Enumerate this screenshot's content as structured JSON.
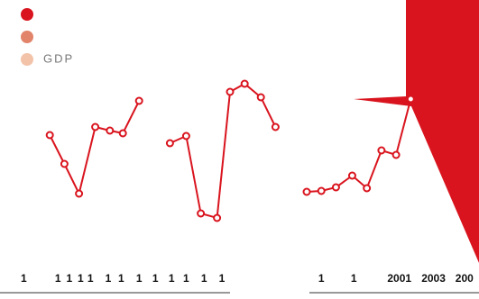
{
  "legend": [
    {
      "color": "#d9141e"
    },
    {
      "color": "#e2846a"
    },
    {
      "color": "#f3c3a9",
      "name": "GDP"
    }
  ],
  "chart_data": [
    {
      "type": "line",
      "color": "#d9141e",
      "xlim": [
        0,
        16
      ],
      "ylim": [
        0,
        130
      ],
      "x": [
        1.4,
        2.3,
        3.2,
        4.2,
        5.1,
        5.9,
        6.9,
        null,
        8.8,
        9.8,
        10.7,
        11.7,
        12.5,
        13.4,
        14.4,
        15.3
      ],
      "values": [
        55,
        39,
        22.5,
        59.5,
        57.5,
        56,
        74,
        null,
        50.5,
        54.5,
        11.5,
        9,
        79,
        83.5,
        76,
        59.5
      ],
      "xticks": [
        {
          "value": -0.2,
          "label": "1"
        },
        {
          "value": 1.9,
          "label": "1"
        },
        {
          "value": 2.6,
          "label": "1"
        },
        {
          "value": 3.3,
          "label": "1"
        },
        {
          "value": 3.9,
          "label": "1"
        },
        {
          "value": 5,
          "label": "1"
        },
        {
          "value": 5.8,
          "label": "1"
        },
        {
          "value": 6.9,
          "label": "1"
        },
        {
          "value": 7.9,
          "label": "1"
        },
        {
          "value": 8.9,
          "label": "1"
        },
        {
          "value": 9.8,
          "label": "1"
        },
        {
          "value": 10.9,
          "label": "1"
        },
        {
          "value": 12,
          "label": "1"
        }
      ]
    },
    {
      "type": "line",
      "color": "#d9141e",
      "xlim": [
        0,
        10.6
      ],
      "ylim": [
        0,
        130
      ],
      "x": [
        0,
        0.9,
        1.8,
        2.8,
        3.7,
        4.6,
        5.5,
        6.4
      ],
      "values": [
        23.5,
        24,
        26,
        32.5,
        25.5,
        46.5,
        44,
        75
      ],
      "xticks": [
        {
          "value": 0.9,
          "label": "1"
        },
        {
          "value": 2.9,
          "label": "1"
        },
        {
          "value": 5.7,
          "label": "2001"
        },
        {
          "value": 7.8,
          "label": "2003"
        },
        {
          "value": 9.7,
          "label": "200"
        }
      ]
    }
  ]
}
